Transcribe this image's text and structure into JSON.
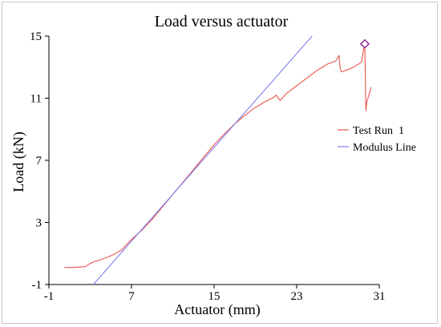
{
  "chart_data": {
    "type": "line",
    "title": "Load versus actuator",
    "xlabel": "Actuator (mm)",
    "ylabel": "Load (kN)",
    "xlim": [
      -1,
      31
    ],
    "ylim": [
      -1,
      15
    ],
    "xticks": [
      -1,
      7,
      15,
      23,
      31
    ],
    "yticks": [
      -1,
      3,
      7,
      11,
      15
    ],
    "grid": false,
    "legend_position": "right",
    "series": [
      {
        "name": "Test Run  1",
        "color": "#e8564a",
        "x": [
          0.5,
          1.5,
          2.5,
          3.0,
          3.5,
          4.0,
          5.0,
          6.0,
          7.0,
          8.0,
          9.0,
          10.0,
          11.0,
          12.0,
          13.0,
          14.0,
          15.0,
          16.0,
          17.0,
          18.0,
          19.0,
          20.0,
          20.8,
          21.0,
          21.4,
          22.0,
          23.0,
          24.0,
          25.0,
          26.0,
          26.8,
          27.1,
          27.2,
          27.3,
          27.6,
          28.0,
          28.5,
          29.0,
          29.3,
          29.5,
          29.6,
          29.7,
          29.8,
          30.0,
          30.2
        ],
        "y": [
          0.1,
          0.1,
          0.15,
          0.35,
          0.5,
          0.6,
          0.85,
          1.2,
          1.9,
          2.5,
          3.2,
          4.0,
          4.8,
          5.6,
          6.4,
          7.2,
          8.0,
          8.7,
          9.35,
          9.9,
          10.4,
          10.8,
          11.05,
          11.2,
          10.85,
          11.3,
          11.8,
          12.3,
          12.8,
          13.2,
          13.4,
          13.75,
          13.0,
          12.7,
          12.75,
          12.85,
          13.0,
          13.2,
          13.35,
          14.2,
          14.5,
          10.2,
          10.8,
          11.2,
          11.7
        ]
      },
      {
        "name": "Modulus Line",
        "color": "#7c7cf0",
        "x": [
          3.3,
          24.5
        ],
        "y": [
          -1.0,
          15.0
        ]
      }
    ],
    "marker": {
      "symbol": "diamond",
      "color": "#8a1a8a",
      "x": 29.6,
      "y": 14.5
    }
  }
}
